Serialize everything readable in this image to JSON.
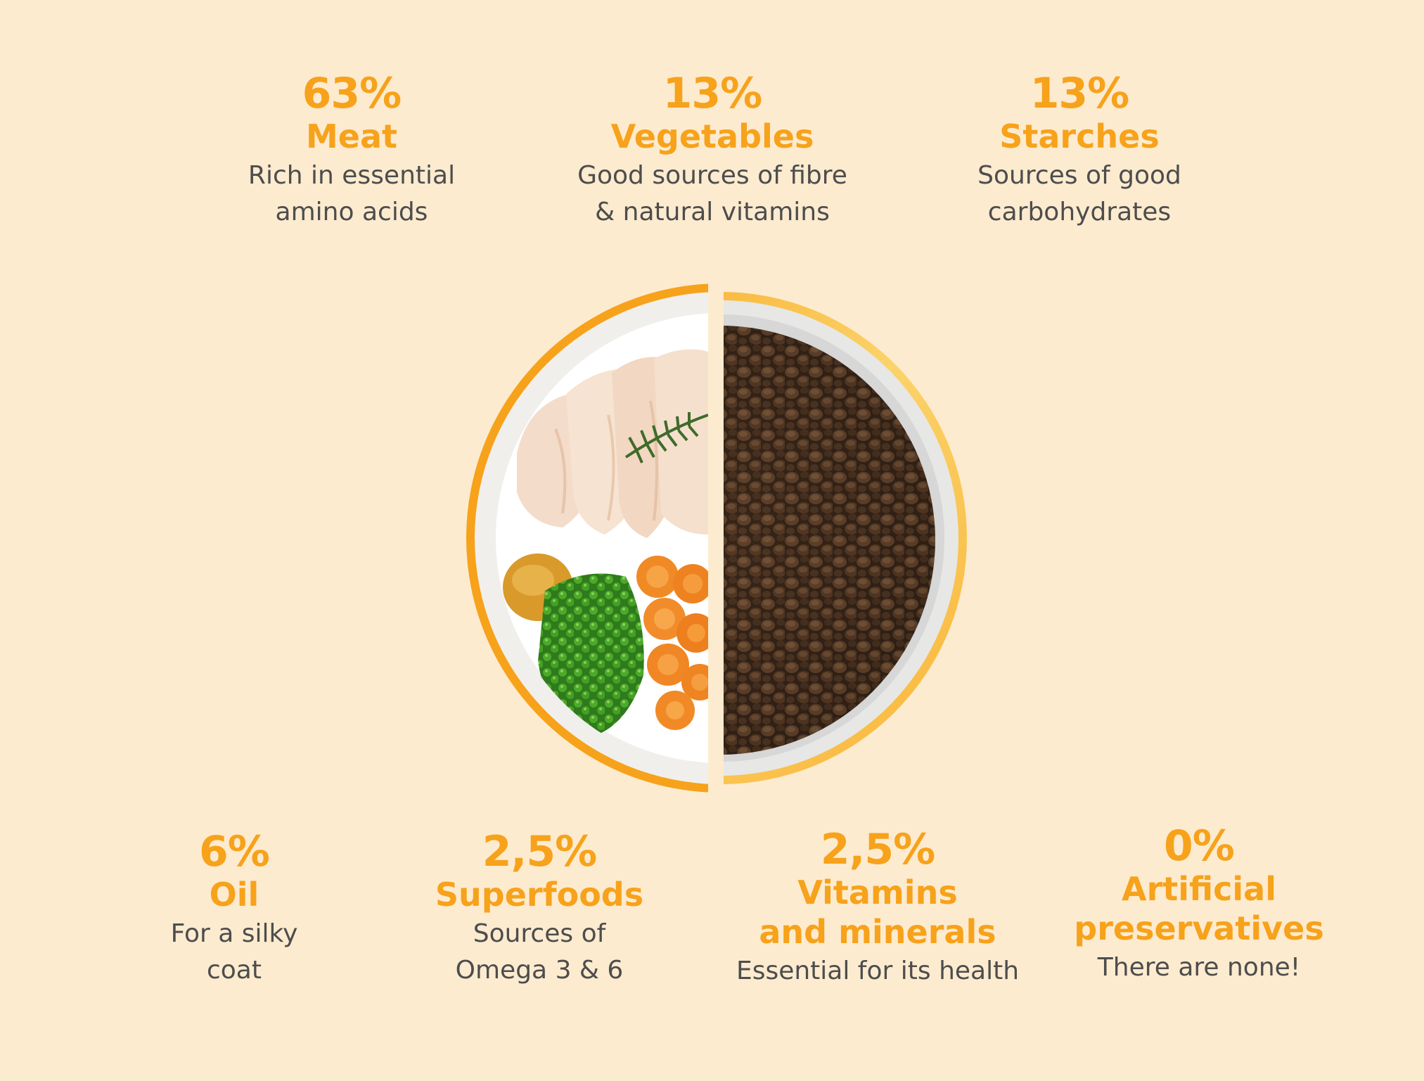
{
  "colors": {
    "background": "#fdebcf",
    "accent": "#f7a21b",
    "text": "#4d4d4d"
  },
  "top_stats": [
    {
      "percent": "63%",
      "name": "Meat",
      "description": "Rich in essential\namino acids"
    },
    {
      "percent": "13%",
      "name": "Vegetables",
      "description": "Good sources of fibre\n& natural vitamins"
    },
    {
      "percent": "13%",
      "name": "Starches",
      "description": "Sources of good\ncarbohydrates"
    }
  ],
  "bottom_stats": [
    {
      "percent": "6%",
      "name": "Oil",
      "description": "For a silky\ncoat"
    },
    {
      "percent": "2,5%",
      "name": "Superfoods",
      "description": "Sources of\nOmega 3 & 6"
    },
    {
      "percent": "2,5%",
      "name": "Vitamins\nand minerals",
      "description": "Essential for its health"
    },
    {
      "percent": "0%",
      "name": "Artificial\npreservatives",
      "description": "There are none!"
    }
  ],
  "image": {
    "left_half": "fresh ingredients: sliced chicken breast, rosemary, turmeric powder, green peas, carrot slices",
    "right_half": "dry kibble"
  }
}
